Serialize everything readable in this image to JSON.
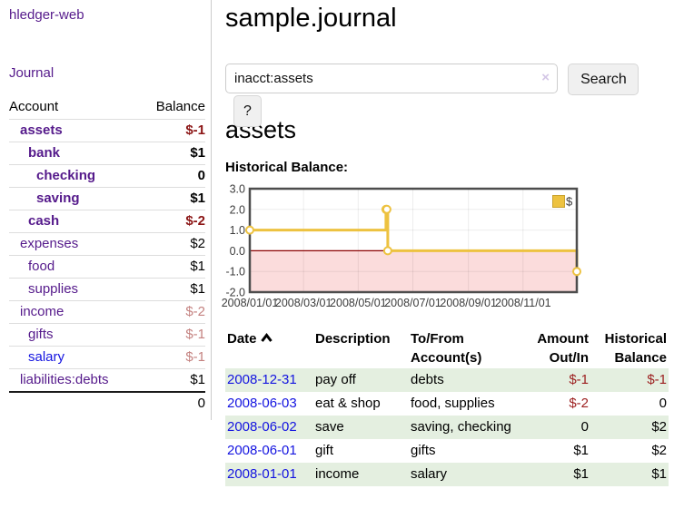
{
  "app": {
    "brand": "hledger-web",
    "nav_journal": "Journal"
  },
  "sidebar": {
    "header": {
      "account": "Account",
      "balance": "Balance"
    },
    "accounts": [
      {
        "name": "assets",
        "balance": "$-1",
        "depth": 1,
        "bold": true,
        "negative": true,
        "unvisited": false
      },
      {
        "name": "bank",
        "balance": "$1",
        "depth": 2,
        "bold": true,
        "negative": false,
        "unvisited": false
      },
      {
        "name": "checking",
        "balance": "0",
        "depth": 3,
        "bold": true,
        "negative": false,
        "unvisited": false
      },
      {
        "name": "saving",
        "balance": "$1",
        "depth": 3,
        "bold": true,
        "negative": false,
        "unvisited": false
      },
      {
        "name": "cash",
        "balance": "$-2",
        "depth": 2,
        "bold": true,
        "negative": true,
        "unvisited": false
      },
      {
        "name": "expenses",
        "balance": "$2",
        "depth": 1,
        "bold": false,
        "negative": false,
        "unvisited": false
      },
      {
        "name": "food",
        "balance": "$1",
        "depth": 2,
        "bold": false,
        "negative": false,
        "unvisited": false
      },
      {
        "name": "supplies",
        "balance": "$1",
        "depth": 2,
        "bold": false,
        "negative": false,
        "unvisited": false
      },
      {
        "name": "income",
        "balance": "$-2",
        "depth": 1,
        "bold": false,
        "negative": true,
        "unvisited": false
      },
      {
        "name": "gifts",
        "balance": "$-1",
        "depth": 2,
        "bold": false,
        "negative": true,
        "unvisited": false
      },
      {
        "name": "salary",
        "balance": "$-1",
        "depth": 2,
        "bold": false,
        "negative": true,
        "unvisited": true
      },
      {
        "name": "liabilities:debts",
        "balance": "$1",
        "depth": 1,
        "bold": false,
        "negative": false,
        "unvisited": false
      }
    ],
    "total": "0"
  },
  "header": {
    "title": "sample.journal"
  },
  "search": {
    "value": "inacct:assets",
    "clear_icon": "×",
    "button_label": "Search",
    "help_label": "?"
  },
  "account_page": {
    "title": "assets",
    "chart_title": "Historical Balance:"
  },
  "chart_data": {
    "type": "line",
    "style": "step-after",
    "title": "Historical Balance",
    "xlim": [
      "2008-01-01",
      "2008-12-31"
    ],
    "ylim": [
      -2,
      3
    ],
    "x_ticks": [
      {
        "date": "2008-01-01",
        "label": "2008/01/01"
      },
      {
        "date": "2008-03-01",
        "label": "2008/03/01"
      },
      {
        "date": "2008-05-01",
        "label": "2008/05/01"
      },
      {
        "date": "2008-07-01",
        "label": "2008/07/01"
      },
      {
        "date": "2008-09-01",
        "label": "2008/09/01"
      },
      {
        "date": "2008-11-01",
        "label": "2008/11/01"
      }
    ],
    "y_ticks": [
      {
        "value": 3,
        "label": "3.0"
      },
      {
        "value": 2,
        "label": "2.0"
      },
      {
        "value": 1,
        "label": "1.0"
      },
      {
        "value": 0,
        "label": "0.0"
      },
      {
        "value": -1,
        "label": "-1.0"
      },
      {
        "value": -2,
        "label": "-2.0"
      }
    ],
    "series": [
      {
        "name": "$",
        "color": "#edc240",
        "points": [
          {
            "date": "2008-01-01",
            "value": 1
          },
          {
            "date": "2008-06-01",
            "value": 2
          },
          {
            "date": "2008-06-02",
            "value": 2
          },
          {
            "date": "2008-06-03",
            "value": 0
          },
          {
            "date": "2008-12-31",
            "value": -1
          }
        ]
      }
    ],
    "legend": {
      "label": "$",
      "position": "top-right"
    },
    "grid": true,
    "colors": {
      "negative_region": "#fbdcdc",
      "zero_line": "#8b0000",
      "plot_border": "#4d4d4d",
      "grid_line": "rgba(0,0,0,0.07)",
      "tick_text": "#3c3c3c",
      "marker_fill": "#ffffff"
    }
  },
  "register": {
    "columns": {
      "date": "Date",
      "description": "Description",
      "accounts": "To/From Account(s)",
      "amount": "Amount Out/In",
      "balance": "Historical Balance"
    },
    "sort_icon": "chevron-up",
    "rows": [
      {
        "date": "2008-12-31",
        "description": "pay off",
        "accounts": "debts",
        "amount": "$-1",
        "amount_negative": true,
        "balance": "$-1",
        "balance_negative": true
      },
      {
        "date": "2008-06-03",
        "description": "eat & shop",
        "accounts": "food, supplies",
        "amount": "$-2",
        "amount_negative": true,
        "balance": "0",
        "balance_negative": false
      },
      {
        "date": "2008-06-02",
        "description": "save",
        "accounts": "saving, checking",
        "amount": "0",
        "amount_negative": false,
        "balance": "$2",
        "balance_negative": false
      },
      {
        "date": "2008-06-01",
        "description": "gift",
        "accounts": "gifts",
        "amount": "$1",
        "amount_negative": false,
        "balance": "$2",
        "balance_negative": false
      },
      {
        "date": "2008-01-01",
        "description": "income",
        "accounts": "salary",
        "amount": "$1",
        "amount_negative": false,
        "balance": "$1",
        "balance_negative": false
      }
    ]
  },
  "colors": {
    "link_purple": "#551a8b",
    "link_blue": "#1414e0",
    "negative_red": "#8b1515",
    "row_green": "#e4efe0",
    "chart_yellow": "#edc240"
  }
}
